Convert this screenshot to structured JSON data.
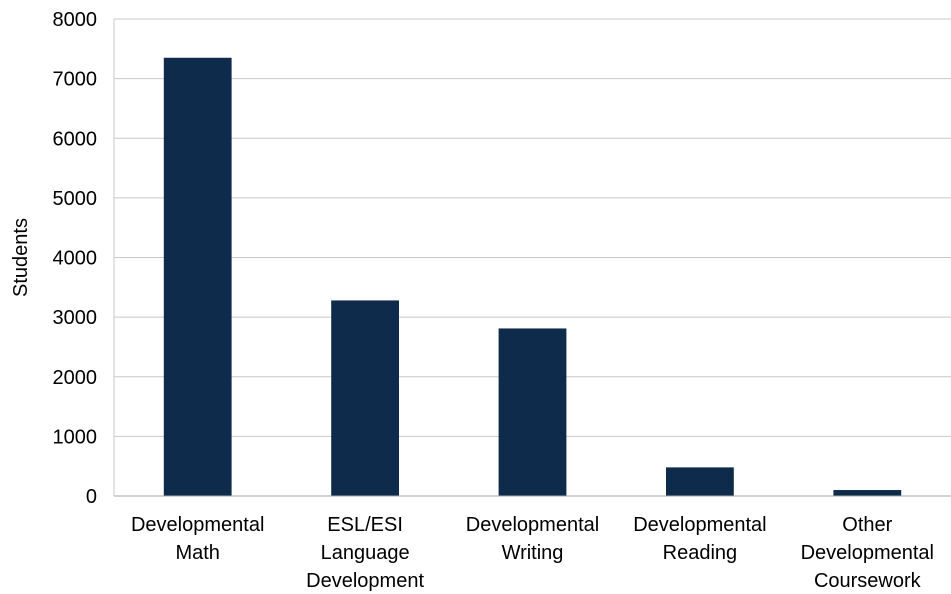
{
  "chart_data": {
    "type": "bar",
    "title": "",
    "xlabel": "",
    "ylabel": "Students",
    "ylim": [
      0,
      8000
    ],
    "yticks": [
      0,
      1000,
      2000,
      3000,
      4000,
      5000,
      6000,
      7000,
      8000
    ],
    "grid": true,
    "legend": "none",
    "bar_color": "#0f2b4b",
    "grid_color": "#c8c8c8",
    "categories": [
      [
        "Developmental",
        "Math"
      ],
      [
        "ESL/ESI",
        "Language",
        "Development"
      ],
      [
        "Developmental",
        "Writing"
      ],
      [
        "Developmental",
        "Reading"
      ],
      [
        "Other",
        "Developmental",
        "Coursework"
      ]
    ],
    "values": [
      7350,
      3280,
      2810,
      480,
      100
    ]
  }
}
